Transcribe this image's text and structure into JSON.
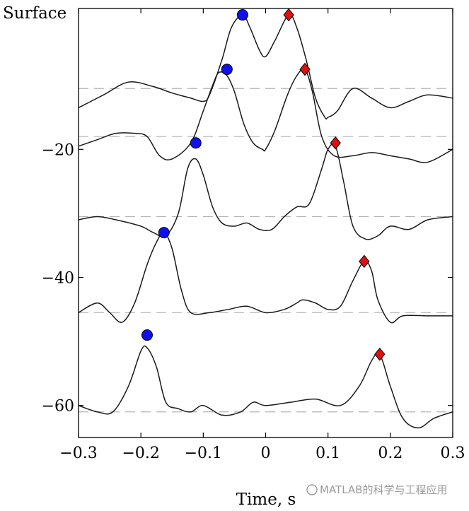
{
  "chart_data": {
    "type": "line",
    "title": "",
    "xlabel": "Time, s",
    "ylabel": "Surface",
    "xlim": [
      -0.3,
      0.3
    ],
    "ylim": [
      -65,
      2
    ],
    "x_ticks": [
      -0.3,
      -0.2,
      -0.1,
      0,
      0.1,
      0.2,
      0.3
    ],
    "x_tick_labels": [
      "−0.3",
      "−0.2",
      "−0.1",
      "0",
      "0.1",
      "0.2",
      "0.3"
    ],
    "y_ticks": [
      -20,
      -40,
      -60
    ],
    "y_tick_labels": [
      "−20",
      "−40",
      "−60"
    ],
    "grid": false,
    "baselines": [
      -10.5,
      -18,
      -30.5,
      -45.5,
      -61
    ],
    "series": [
      {
        "x": [
          -0.3,
          -0.26,
          -0.22,
          -0.18,
          -0.15,
          -0.12,
          -0.1,
          -0.09,
          -0.07,
          -0.055,
          -0.037,
          -0.025,
          -0.01,
          0.0,
          0.015,
          0.037,
          0.05,
          0.065,
          0.08,
          0.095,
          0.1,
          0.115,
          0.14,
          0.17,
          0.2,
          0.23,
          0.26,
          0.3
        ],
        "y": [
          -13.5,
          -11.5,
          -9.5,
          -10.2,
          -11.2,
          -12,
          -12.5,
          -11.5,
          -6,
          -1,
          1,
          -1,
          -4.5,
          -5.5,
          -3,
          1,
          -1,
          -6,
          -12,
          -15,
          -15,
          -14,
          -10.5,
          -12,
          -13.5,
          -12.5,
          -11.5,
          -12
        ]
      },
      {
        "x": [
          -0.3,
          -0.27,
          -0.24,
          -0.21,
          -0.19,
          -0.17,
          -0.15,
          -0.12,
          -0.1,
          -0.085,
          -0.075,
          -0.062,
          -0.05,
          -0.035,
          -0.02,
          -0.005,
          0.0,
          0.015,
          0.035,
          0.05,
          0.063,
          0.075,
          0.09,
          0.11,
          0.14,
          0.17,
          0.2,
          0.23,
          0.26,
          0.3
        ],
        "y": [
          -19.5,
          -18.5,
          -17.5,
          -17.5,
          -18,
          -21,
          -21.5,
          -19,
          -14,
          -10,
          -8,
          -8.5,
          -11,
          -16,
          -19,
          -20,
          -20,
          -17,
          -11.5,
          -8.5,
          -7.5,
          -11,
          -18,
          -21,
          -21,
          -20.5,
          -21,
          -21.5,
          -22,
          -20
        ]
      },
      {
        "x": [
          -0.3,
          -0.27,
          -0.24,
          -0.2,
          -0.18,
          -0.16,
          -0.14,
          -0.125,
          -0.112,
          -0.1,
          -0.085,
          -0.07,
          -0.05,
          -0.03,
          -0.01,
          0.01,
          0.03,
          0.05,
          0.07,
          0.09,
          0.1,
          0.112,
          0.125,
          0.14,
          0.16,
          0.18,
          0.2,
          0.23,
          0.26,
          0.3
        ],
        "y": [
          -31,
          -30.5,
          -31,
          -32,
          -33,
          -33.5,
          -30,
          -23,
          -21.5,
          -24,
          -29,
          -31.5,
          -32,
          -31.5,
          -32.5,
          -32.5,
          -30.5,
          -29,
          -28.5,
          -23,
          -20,
          -19.5,
          -25,
          -32,
          -34,
          -33.5,
          -32,
          -32.5,
          -31,
          -30.5
        ]
      },
      {
        "x": [
          -0.3,
          -0.27,
          -0.25,
          -0.23,
          -0.21,
          -0.19,
          -0.175,
          -0.163,
          -0.15,
          -0.135,
          -0.12,
          -0.09,
          -0.06,
          -0.03,
          0.0,
          0.03,
          0.05,
          0.06,
          0.08,
          0.1,
          0.12,
          0.14,
          0.158,
          0.17,
          0.18,
          0.2,
          0.22,
          0.26,
          0.3
        ],
        "y": [
          -45.5,
          -44,
          -45.5,
          -47,
          -44,
          -38,
          -34.5,
          -33,
          -35.5,
          -42,
          -45.5,
          -45.5,
          -45,
          -44.5,
          -45.5,
          -45,
          -44,
          -43.5,
          -44,
          -45,
          -44.5,
          -40.5,
          -37.5,
          -39,
          -43.5,
          -47,
          -46,
          -46,
          -46
        ]
      },
      {
        "x": [
          -0.3,
          -0.27,
          -0.245,
          -0.22,
          -0.2,
          -0.19,
          -0.175,
          -0.16,
          -0.14,
          -0.12,
          -0.1,
          -0.07,
          -0.04,
          -0.02,
          0.0,
          0.04,
          0.08,
          0.12,
          0.15,
          0.17,
          0.183,
          0.2,
          0.22,
          0.245,
          0.27,
          0.3
        ],
        "y": [
          -60,
          -61,
          -61,
          -57,
          -51.5,
          -51,
          -54,
          -59.5,
          -60.5,
          -61,
          -60,
          -61.5,
          -61,
          -59.5,
          -60,
          -59.5,
          -59,
          -60,
          -57,
          -53,
          -52,
          -57,
          -62,
          -63.5,
          -62,
          -61
        ]
      }
    ],
    "circle_markers": {
      "color": "#1010ee",
      "x": [
        -0.037,
        -0.062,
        -0.112,
        -0.163,
        -0.19
      ],
      "y": [
        1,
        -7.5,
        -19,
        -33,
        -49
      ]
    },
    "diamond_markers": {
      "color": "#e01010",
      "x": [
        0.037,
        0.063,
        0.112,
        0.158,
        0.183
      ],
      "y": [
        1,
        -7.5,
        -19,
        -37.5,
        -52
      ]
    },
    "watermark": "MATLAB的科学与工程应用"
  }
}
